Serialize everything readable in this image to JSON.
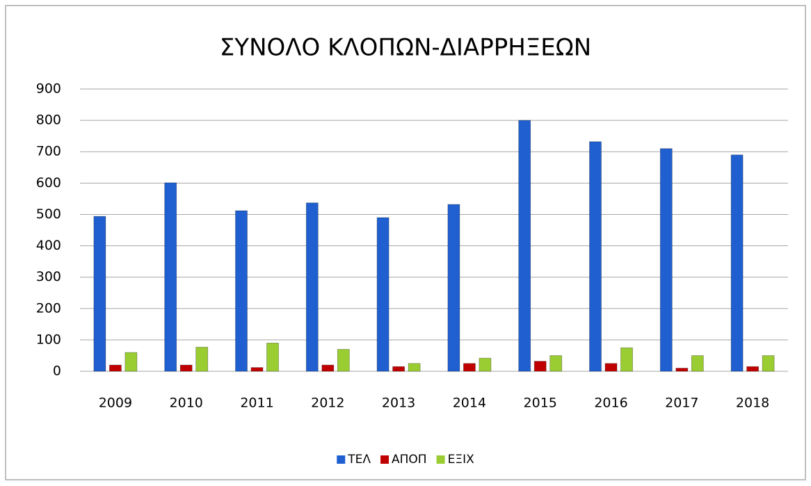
{
  "chart_data": {
    "type": "bar",
    "title": "ΣΥΝΟΛΟ ΚΛΟΠΩΝ-ΔΙΑΡΡΗΞΕΩΝ",
    "categories": [
      "2009",
      "2010",
      "2011",
      "2012",
      "2013",
      "2014",
      "2015",
      "2016",
      "2017",
      "2018"
    ],
    "series": [
      {
        "name": "ΤΕΛ",
        "color": "#1f5fd0",
        "values": [
          494,
          601,
          512,
          537,
          490,
          532,
          800,
          732,
          710,
          690
        ]
      },
      {
        "name": "ΑΠΟΠ",
        "color": "#c00000",
        "values": [
          20,
          20,
          12,
          20,
          15,
          25,
          32,
          25,
          10,
          15
        ]
      },
      {
        "name": "ΕΞΙΧ",
        "color": "#9acd32",
        "values": [
          60,
          77,
          90,
          70,
          25,
          42,
          50,
          75,
          50,
          50
        ]
      }
    ],
    "ylim": [
      0,
      900
    ],
    "yticks": [
      0,
      100,
      200,
      300,
      400,
      500,
      600,
      700,
      800,
      900
    ],
    "grid": true,
    "legend": "bottom"
  }
}
